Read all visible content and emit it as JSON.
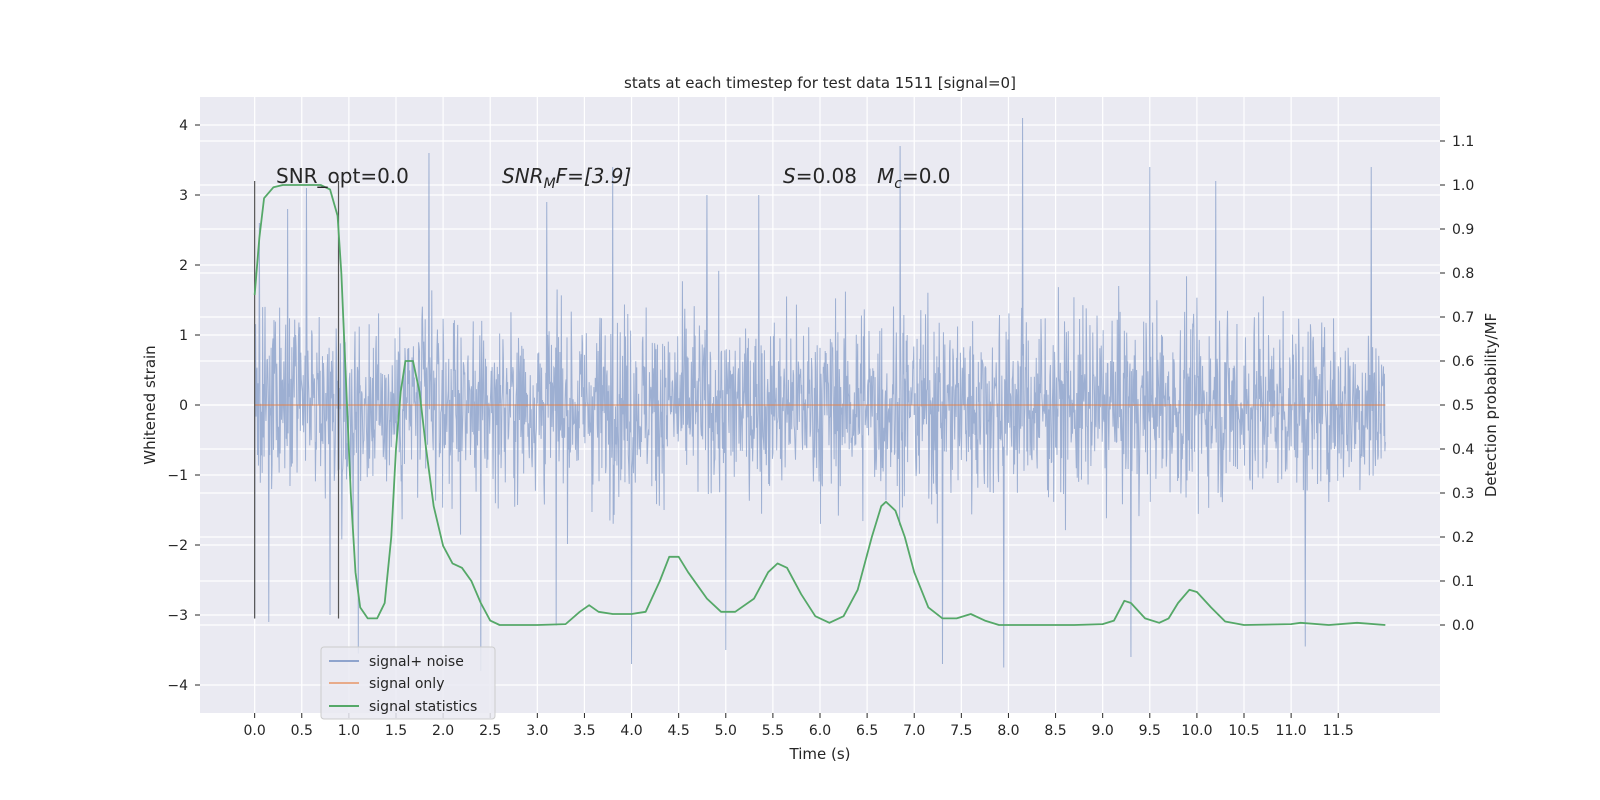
{
  "chart_data": {
    "type": "line",
    "title": "stats at each timestep for test data 1511 [signal=0]",
    "xlabel": "Time (s)",
    "ylabel": "Whitened strain",
    "y2label": "Detection probability/MF",
    "xlim": [
      -0.58,
      12.58
    ],
    "ylim": [
      -4.4,
      4.4
    ],
    "y2lim": [
      -0.2,
      1.2
    ],
    "xticks": [
      "0.0",
      "0.5",
      "1.0",
      "1.5",
      "2.0",
      "2.5",
      "3.0",
      "3.5",
      "4.0",
      "4.5",
      "5.0",
      "5.5",
      "6.0",
      "6.5",
      "7.0",
      "7.5",
      "8.0",
      "8.5",
      "9.0",
      "9.5",
      "10.0",
      "10.5",
      "11.0",
      "11.5"
    ],
    "yticks": [
      "4",
      "3",
      "2",
      "1",
      "0",
      "−1",
      "−2",
      "−3",
      "−4"
    ],
    "y2ticks": [
      "1.1",
      "1.0",
      "0.9",
      "0.8",
      "0.7",
      "0.6",
      "0.5",
      "0.4",
      "0.3",
      "0.2",
      "0.1",
      "0.0"
    ],
    "grid": true,
    "legend_position": "lower-left",
    "annotations": {
      "snr_opt": "SNR_opt=0.0",
      "snr_mf_base": "SNR",
      "snr_mf_sub": "M",
      "snr_mf_rest": "F=[3.9]",
      "s_var": "S",
      "s_value": "=0.08",
      "mc_var": "M",
      "mc_sub": "c",
      "mc_value": "=0.0"
    },
    "series": [
      {
        "name": "signal+ noise",
        "color": "#8fa4cd",
        "t_range": [
          0.0,
          12.0
        ],
        "envelope_upper_typical": 1.6,
        "envelope_lower_typical": -1.6,
        "peaks": [
          [
            0.05,
            2.6
          ],
          [
            0.35,
            2.8
          ],
          [
            0.55,
            3.1
          ],
          [
            1.85,
            3.6
          ],
          [
            3.1,
            2.9
          ],
          [
            3.8,
            3.4
          ],
          [
            4.8,
            3.0
          ],
          [
            5.35,
            3.0
          ],
          [
            6.85,
            3.7
          ],
          [
            8.15,
            4.1
          ],
          [
            9.5,
            3.4
          ],
          [
            10.2,
            3.2
          ],
          [
            11.85,
            3.4
          ]
        ],
        "troughs": [
          [
            0.0,
            -3.05
          ],
          [
            0.15,
            -3.1
          ],
          [
            0.8,
            -3.0
          ],
          [
            1.1,
            -3.55
          ],
          [
            2.4,
            -3.8
          ],
          [
            3.2,
            -3.15
          ],
          [
            4.0,
            -3.7
          ],
          [
            5.0,
            -3.5
          ],
          [
            7.3,
            -3.7
          ],
          [
            7.95,
            -3.75
          ],
          [
            9.3,
            -3.6
          ],
          [
            11.15,
            -3.45
          ]
        ]
      },
      {
        "name": "signal only",
        "color": "#dd8452",
        "values_constant": 0.0
      },
      {
        "name": "signal statistics",
        "color": "#55a868",
        "axis": "right",
        "points": [
          [
            0.0,
            0.75
          ],
          [
            0.05,
            0.88
          ],
          [
            0.1,
            0.97
          ],
          [
            0.2,
            0.995
          ],
          [
            0.3,
            1.0
          ],
          [
            0.5,
            1.0
          ],
          [
            0.7,
            1.0
          ],
          [
            0.8,
            0.99
          ],
          [
            0.88,
            0.93
          ],
          [
            0.92,
            0.8
          ],
          [
            0.97,
            0.55
          ],
          [
            1.02,
            0.3
          ],
          [
            1.07,
            0.12
          ],
          [
            1.12,
            0.04
          ],
          [
            1.2,
            0.015
          ],
          [
            1.3,
            0.015
          ],
          [
            1.38,
            0.05
          ],
          [
            1.45,
            0.2
          ],
          [
            1.5,
            0.4
          ],
          [
            1.55,
            0.53
          ],
          [
            1.6,
            0.6
          ],
          [
            1.68,
            0.6
          ],
          [
            1.75,
            0.53
          ],
          [
            1.82,
            0.4
          ],
          [
            1.9,
            0.27
          ],
          [
            2.0,
            0.18
          ],
          [
            2.1,
            0.14
          ],
          [
            2.2,
            0.13
          ],
          [
            2.3,
            0.1
          ],
          [
            2.4,
            0.05
          ],
          [
            2.5,
            0.01
          ],
          [
            2.6,
            0.0
          ],
          [
            3.0,
            0.0
          ],
          [
            3.3,
            0.002
          ],
          [
            3.45,
            0.03
          ],
          [
            3.55,
            0.045
          ],
          [
            3.65,
            0.03
          ],
          [
            3.8,
            0.025
          ],
          [
            4.0,
            0.025
          ],
          [
            4.15,
            0.03
          ],
          [
            4.3,
            0.1
          ],
          [
            4.4,
            0.155
          ],
          [
            4.5,
            0.155
          ],
          [
            4.6,
            0.12
          ],
          [
            4.8,
            0.06
          ],
          [
            4.95,
            0.03
          ],
          [
            5.1,
            0.03
          ],
          [
            5.3,
            0.06
          ],
          [
            5.45,
            0.12
          ],
          [
            5.55,
            0.14
          ],
          [
            5.65,
            0.13
          ],
          [
            5.8,
            0.07
          ],
          [
            5.95,
            0.02
          ],
          [
            6.1,
            0.005
          ],
          [
            6.25,
            0.02
          ],
          [
            6.4,
            0.08
          ],
          [
            6.55,
            0.2
          ],
          [
            6.65,
            0.27
          ],
          [
            6.7,
            0.28
          ],
          [
            6.8,
            0.26
          ],
          [
            6.9,
            0.2
          ],
          [
            7.0,
            0.12
          ],
          [
            7.15,
            0.04
          ],
          [
            7.3,
            0.015
          ],
          [
            7.45,
            0.015
          ],
          [
            7.6,
            0.025
          ],
          [
            7.75,
            0.01
          ],
          [
            7.9,
            0.0
          ],
          [
            8.3,
            0.0
          ],
          [
            8.7,
            0.0
          ],
          [
            9.0,
            0.002
          ],
          [
            9.12,
            0.01
          ],
          [
            9.23,
            0.055
          ],
          [
            9.3,
            0.05
          ],
          [
            9.45,
            0.015
          ],
          [
            9.6,
            0.005
          ],
          [
            9.7,
            0.015
          ],
          [
            9.8,
            0.05
          ],
          [
            9.92,
            0.08
          ],
          [
            10.0,
            0.075
          ],
          [
            10.15,
            0.04
          ],
          [
            10.3,
            0.008
          ],
          [
            10.5,
            0.0
          ],
          [
            11.0,
            0.002
          ],
          [
            11.1,
            0.005
          ],
          [
            11.4,
            0.0
          ],
          [
            11.7,
            0.005
          ],
          [
            12.0,
            0.0
          ]
        ]
      }
    ],
    "markers": {
      "vertical_lines_t": [
        0.0,
        0.89
      ],
      "vertical_line_y_range": [
        -3.05,
        3.2
      ]
    }
  }
}
